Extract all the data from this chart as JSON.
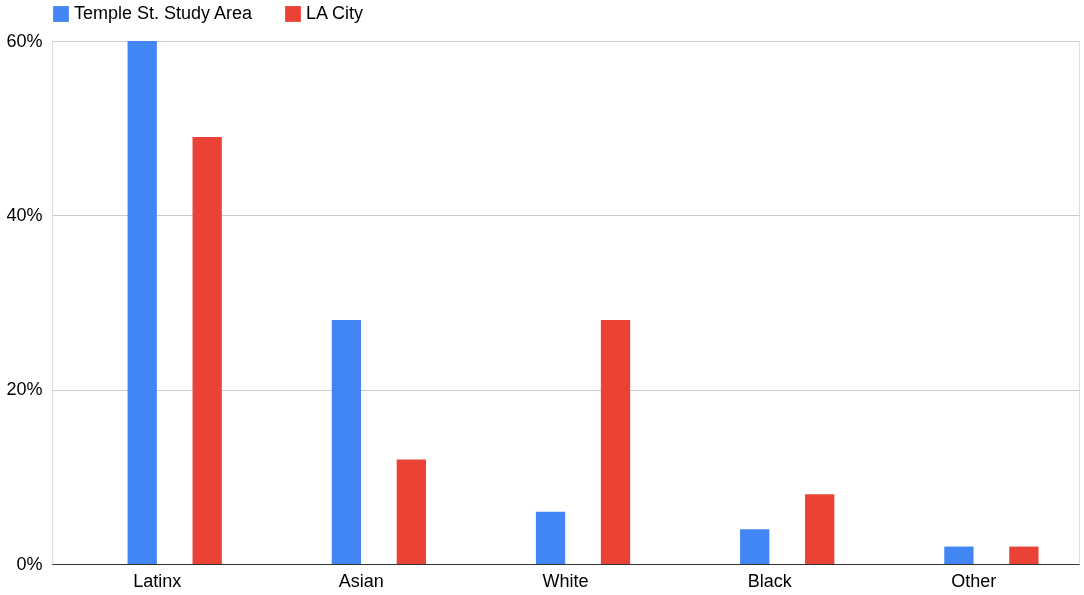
{
  "chart_data": {
    "type": "bar",
    "categories": [
      "Latinx",
      "Asian",
      "White",
      "Black",
      "Other"
    ],
    "series": [
      {
        "name": "Temple St. Study Area",
        "color": "#4285f4",
        "values": [
          60,
          28,
          6,
          4,
          2
        ]
      },
      {
        "name": "LA City",
        "color": "#ea4335",
        "values": [
          49,
          12,
          28,
          8,
          2
        ]
      }
    ],
    "ylim": [
      0,
      60
    ],
    "yticks": [
      {
        "value": 0,
        "label": "0%"
      },
      {
        "value": 20,
        "label": "20%"
      },
      {
        "value": 40,
        "label": "40%"
      },
      {
        "value": 60,
        "label": "60%"
      }
    ],
    "grid": "y",
    "legend": "top"
  }
}
